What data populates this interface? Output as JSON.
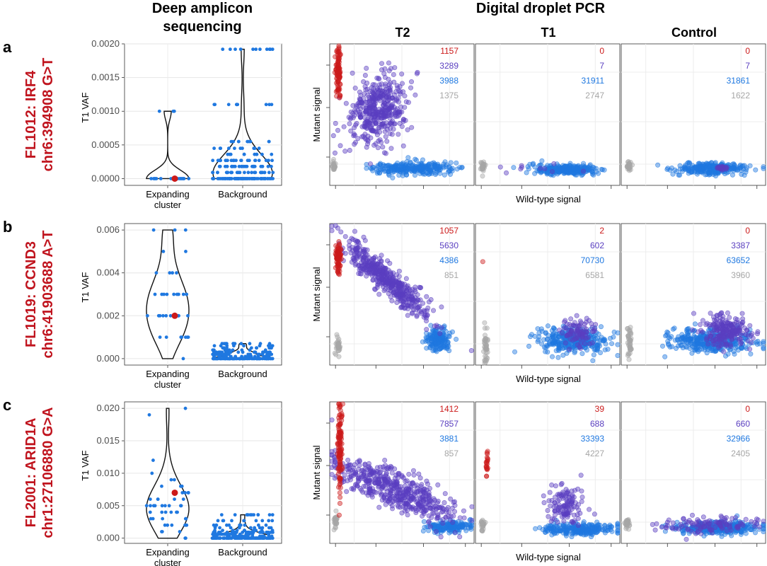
{
  "headers": {
    "left_line1": "Deep amplicon",
    "left_line2": "sequencing",
    "right": "Digital droplet PCR",
    "col_T2": "T2",
    "col_T1": "T1",
    "col_Control": "Control"
  },
  "colors": {
    "label_red": "#c0141e",
    "mutant": "#cc1a1a",
    "double": "#5a3fc0",
    "wildtype": "#1f78e0",
    "empty": "#a6a6a6",
    "vaf_point": "#1f78e0",
    "highlight": "#cc1a1a"
  },
  "axes": {
    "vaf_ylabel": "T1 VAF",
    "ddpcr_ylabel": "Mutant signal",
    "ddpcr_xlabel": "Wild-type signal",
    "cat_expanding_line1": "Expanding",
    "cat_expanding_line2": "cluster",
    "cat_background": "Background"
  },
  "chart_data": [
    {
      "id": "a",
      "letter": "a",
      "label_line1": "FL1012: IRF4",
      "label_line2": "chr6:394908 G>T",
      "vaf": {
        "type": "scatter",
        "ylabel": "T1 VAF",
        "categories": [
          "Expanding cluster",
          "Background"
        ],
        "ylim": [
          -0.0001,
          0.002
        ],
        "yticks": [
          "0.0000",
          "0.0005",
          "0.0010",
          "0.0015",
          "0.0020"
        ],
        "expanding_values": [
          0.001,
          0.001,
          0.001,
          0.0,
          0.0,
          0.0,
          0.0,
          0.0,
          0.0,
          0.0,
          0.0,
          0.0,
          0.0,
          0.0,
          0.0,
          0.0,
          0.0,
          0.0,
          0.0,
          0.0,
          0.0
        ],
        "highlight_value": 0.0,
        "background_max": 0.00192,
        "background_levels": [
          0.0,
          9.1e-05,
          0.00018,
          0.00027,
          0.00036,
          0.00045,
          0.00055,
          0.0011,
          0.00192
        ]
      },
      "ddpcr": [
        {
          "panel": "T2",
          "counts": [
            "1157",
            "3289",
            "3988",
            "1375"
          ]
        },
        {
          "panel": "T1",
          "counts": [
            "0",
            "7",
            "31911",
            "2747"
          ]
        },
        {
          "panel": "Control",
          "counts": [
            "0",
            "7",
            "31861",
            "1622"
          ]
        }
      ]
    },
    {
      "id": "b",
      "letter": "b",
      "label_line1": "FL1019: CCND3",
      "label_line2": "chr6:41903688 A>T",
      "vaf": {
        "type": "scatter",
        "ylabel": "T1 VAF",
        "categories": [
          "Expanding cluster",
          "Background"
        ],
        "ylim": [
          -0.0003,
          0.0063
        ],
        "yticks": [
          "0.000",
          "0.002",
          "0.004",
          "0.006"
        ],
        "expanding_values": [
          0.006,
          0.006,
          0.006,
          0.005,
          0.005,
          0.004,
          0.004,
          0.004,
          0.004,
          0.003,
          0.003,
          0.003,
          0.003,
          0.003,
          0.003,
          0.003,
          0.003,
          0.003,
          0.002,
          0.002,
          0.002,
          0.002,
          0.002,
          0.002,
          0.002,
          0.002,
          0.002,
          0.002,
          0.001,
          0.001,
          0.001,
          0.001,
          0.001,
          0.001,
          0.001,
          0.0
        ],
        "highlight_value": 0.002,
        "background_max": 0.0007,
        "background_levels": [
          0.0,
          0.0001,
          0.0002,
          0.0003,
          0.0004,
          0.0005,
          0.0006,
          0.0007
        ]
      },
      "ddpcr": [
        {
          "panel": "T2",
          "counts": [
            "1057",
            "5630",
            "4386",
            "851"
          ]
        },
        {
          "panel": "T1",
          "counts": [
            "2",
            "602",
            "70730",
            "6581"
          ]
        },
        {
          "panel": "Control",
          "counts": [
            "0",
            "3387",
            "63652",
            "3960"
          ]
        }
      ]
    },
    {
      "id": "c",
      "letter": "c",
      "label_line1": "FL2001: ARID1A",
      "label_line2": "chr1:27106880 G>A",
      "vaf": {
        "type": "scatter",
        "ylabel": "T1 VAF",
        "categories": [
          "Expanding cluster",
          "Background"
        ],
        "ylim": [
          -0.0008,
          0.021
        ],
        "yticks": [
          "0.000",
          "0.005",
          "0.010",
          "0.015",
          "0.020"
        ],
        "expanding_values": [
          0.02,
          0.019,
          0.012,
          0.01,
          0.009,
          0.009,
          0.008,
          0.008,
          0.008,
          0.007,
          0.007,
          0.007,
          0.007,
          0.006,
          0.006,
          0.006,
          0.006,
          0.006,
          0.005,
          0.005,
          0.005,
          0.005,
          0.005,
          0.005,
          0.005,
          0.005,
          0.005,
          0.004,
          0.004,
          0.004,
          0.004,
          0.004,
          0.004,
          0.003,
          0.003,
          0.003,
          0.003,
          0.003,
          0.002,
          0.002,
          0.002,
          0.002,
          0.002,
          0.001,
          0.001,
          0.001,
          0.0,
          0.0
        ],
        "highlight_value": 0.007,
        "background_max": 0.0036,
        "background_levels": [
          0.0,
          0.0003,
          0.0006,
          0.0009,
          0.0012,
          0.0016,
          0.002,
          0.0027,
          0.0036
        ]
      },
      "ddpcr": [
        {
          "panel": "T2",
          "counts": [
            "1412",
            "7857",
            "3881",
            "857"
          ]
        },
        {
          "panel": "T1",
          "counts": [
            "39",
            "688",
            "33393",
            "4227"
          ]
        },
        {
          "panel": "Control",
          "counts": [
            "0",
            "660",
            "32966",
            "2405"
          ]
        }
      ]
    }
  ]
}
